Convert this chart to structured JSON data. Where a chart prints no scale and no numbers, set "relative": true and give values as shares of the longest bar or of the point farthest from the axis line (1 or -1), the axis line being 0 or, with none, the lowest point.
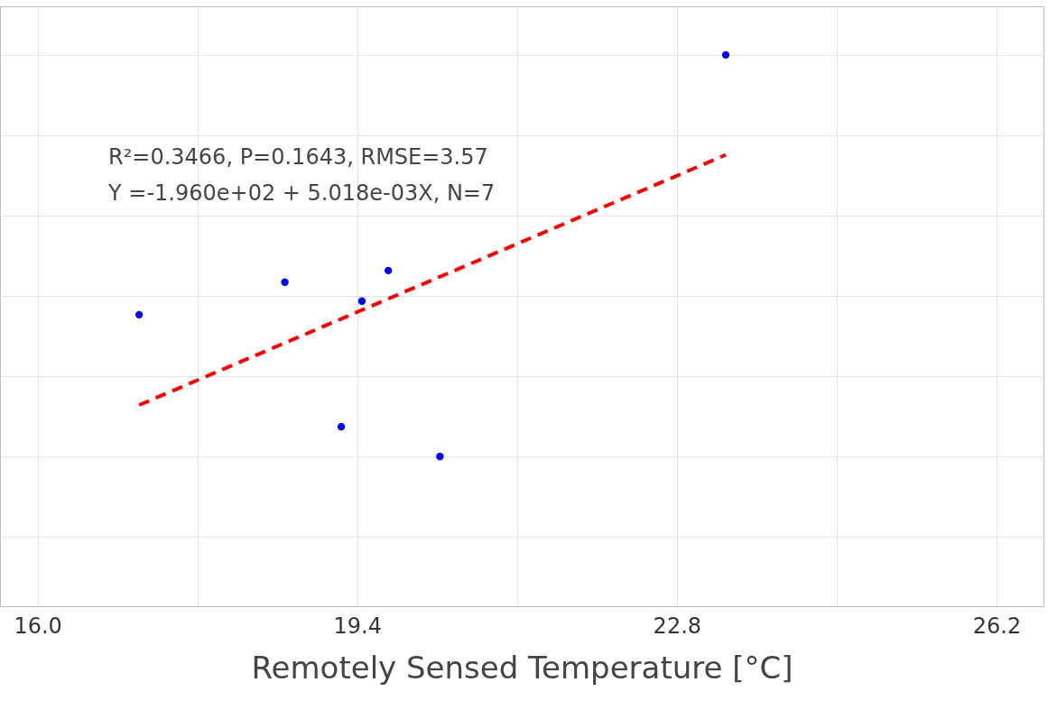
{
  "chart_data": {
    "type": "scatter",
    "relative": true,
    "xlabel": "Remotely Sensed Temperature [°C]",
    "xlim": [
      15.6,
      26.7
    ],
    "xticks": [
      {
        "value": 16,
        "label": "16.0"
      },
      {
        "value": 17.7,
        "label": null
      },
      19.4,
      {
        "value": 21.1,
        "label": null
      },
      22.8,
      {
        "value": 24.5,
        "label": null
      },
      26.2
    ],
    "grid": true,
    "marker": "circle",
    "annotations": [
      "R²=0.3466, P=0.1643, RMSE=3.57",
      "Y =-1.960e+02  + 5.018e-03X, N=7"
    ],
    "series": [
      {
        "color": "#0000ff",
        "x": [
          17.08,
          18.63,
          19.23,
          19.45,
          19.73,
          20.28,
          23.32
        ],
        "values": [
          0.353,
          0.434,
          0.074,
          0.387,
          0.463,
          0,
          1
        ]
      },
      {
        "type": "line",
        "color": "#ff0000",
        "line_style": "dashed",
        "marker": "none",
        "x": [
          17.08,
          23.32
        ],
        "values": [
          0.128,
          0.751
        ]
      }
    ]
  }
}
